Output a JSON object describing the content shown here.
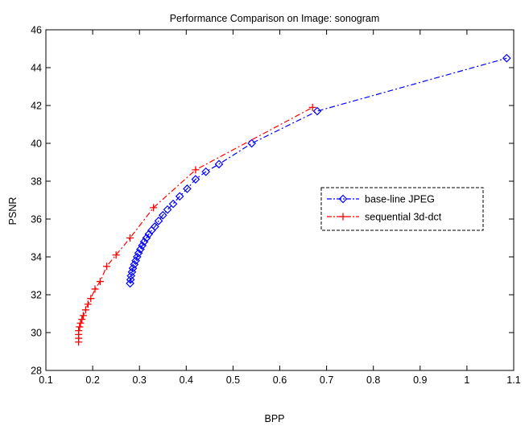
{
  "chart_data": {
    "type": "line",
    "title": "Performance Comparison on Image: sonogram",
    "xlabel": "BPP",
    "ylabel": "PSNR",
    "xlim": [
      0.1,
      1.1
    ],
    "ylim": [
      28,
      46
    ],
    "xticks": [
      0.1,
      0.2,
      0.3,
      0.4,
      0.5,
      0.6,
      0.7,
      0.8,
      0.9,
      1,
      1.1
    ],
    "xtick_labels": [
      "0.1",
      "0.2",
      "0.3",
      "0.4",
      "0.5",
      "0.6",
      "0.7",
      "0.8",
      "0.9",
      "1",
      "1.1"
    ],
    "yticks": [
      28,
      30,
      32,
      34,
      36,
      38,
      40,
      42,
      44,
      46
    ],
    "ytick_labels": [
      "28",
      "30",
      "32",
      "34",
      "36",
      "38",
      "40",
      "42",
      "44",
      "46"
    ],
    "grid": false,
    "legend_position": "right-middle",
    "series": [
      {
        "name": "base-line JPEG",
        "color": "#0000ff",
        "line_style": "dash-dot",
        "marker": "diamond",
        "x": [
          0.28,
          0.281,
          0.282,
          0.284,
          0.286,
          0.289,
          0.292,
          0.295,
          0.298,
          0.302,
          0.306,
          0.31,
          0.315,
          0.32,
          0.326,
          0.333,
          0.341,
          0.35,
          0.36,
          0.372,
          0.386,
          0.402,
          0.42,
          0.442,
          0.47,
          0.54,
          0.68,
          1.085
        ],
        "y": [
          32.6,
          32.8,
          33.0,
          33.2,
          33.4,
          33.6,
          33.8,
          34.0,
          34.2,
          34.4,
          34.6,
          34.8,
          35.0,
          35.2,
          35.4,
          35.6,
          35.9,
          36.2,
          36.5,
          36.8,
          37.2,
          37.6,
          38.1,
          38.5,
          38.9,
          40.0,
          41.7,
          44.5
        ]
      },
      {
        "name": "sequential 3d-dct",
        "color": "#ff0000",
        "line_style": "dash-dot",
        "marker": "plus",
        "x": [
          0.17,
          0.17,
          0.17,
          0.17,
          0.172,
          0.174,
          0.177,
          0.18,
          0.185,
          0.19,
          0.196,
          0.205,
          0.216,
          0.23,
          0.25,
          0.28,
          0.33,
          0.42,
          0.67
        ],
        "y": [
          29.5,
          29.7,
          29.9,
          30.1,
          30.3,
          30.5,
          30.7,
          30.9,
          31.2,
          31.5,
          31.8,
          32.3,
          32.7,
          33.5,
          34.1,
          35.0,
          36.6,
          38.6,
          41.9
        ]
      }
    ]
  }
}
